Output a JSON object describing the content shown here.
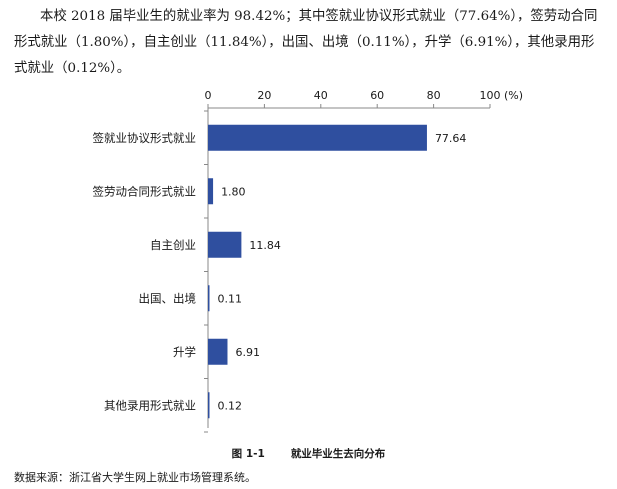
{
  "intro_text": "本校 2018 届毕业生的就业率为 98.42%；其中签就业协议形式就业（77.64%），签劳动合同形式就业（1.80%），自主创业（11.84%），出国、出境（0.11%），升学（6.91%），其他录用形式就业（0.12%）。",
  "caption": {
    "number": "图 1-1",
    "title": "就业毕业生去向分布"
  },
  "source_note": "数据来源：浙江省大学生网上就业市场管理系统。",
  "colors": {
    "bar": "#2f4f9f",
    "axis": "#888888",
    "text": "#1a1a1a"
  },
  "chart_data": {
    "type": "bar",
    "orientation": "horizontal",
    "categories": [
      "签就业协议形式就业",
      "签劳动合同形式就业",
      "自主创业",
      "出国、出境",
      "升学",
      "其他录用形式就业"
    ],
    "values": [
      77.64,
      1.8,
      11.84,
      0.11,
      6.91,
      0.12
    ],
    "value_labels": [
      "77.64",
      "1.80",
      "11.84",
      "0.11",
      "6.91",
      "0.12"
    ],
    "xlim": [
      0,
      100
    ],
    "x_ticks": [
      "0",
      "20",
      "40",
      "60",
      "80",
      "100"
    ],
    "x_unit": "(%)",
    "x_axis_position": "top",
    "grid": false,
    "legend": "none"
  }
}
